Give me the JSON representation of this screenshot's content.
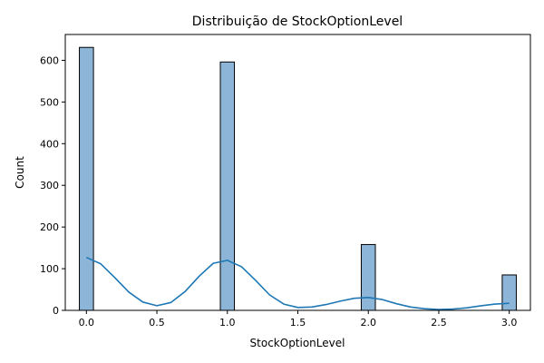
{
  "chart_data": {
    "type": "bar",
    "title": "Distribuição de StockOptionLevel",
    "xlabel": "StockOptionLevel",
    "ylabel": "Count",
    "xlim": [
      -0.15,
      3.15
    ],
    "ylim": [
      0,
      662
    ],
    "xticks": [
      0.0,
      0.5,
      1.0,
      1.5,
      2.0,
      2.5,
      3.0
    ],
    "xtick_labels": [
      "0.0",
      "0.5",
      "1.0",
      "1.5",
      "2.0",
      "2.5",
      "3.0"
    ],
    "yticks": [
      0,
      100,
      200,
      300,
      400,
      500,
      600
    ],
    "ytick_labels": [
      "0",
      "100",
      "200",
      "300",
      "400",
      "500",
      "600"
    ],
    "bar_width": 0.1,
    "bars": [
      {
        "x": 0.0,
        "value": 631
      },
      {
        "x": 1.0,
        "value": 596
      },
      {
        "x": 2.0,
        "value": 158
      },
      {
        "x": 3.0,
        "value": 85
      }
    ],
    "kde": {
      "x": [
        0.0,
        0.1,
        0.2,
        0.3,
        0.4,
        0.5,
        0.6,
        0.7,
        0.8,
        0.9,
        1.0,
        1.1,
        1.2,
        1.3,
        1.4,
        1.5,
        1.6,
        1.7,
        1.8,
        1.9,
        2.0,
        2.1,
        2.2,
        2.3,
        2.4,
        2.5,
        2.6,
        2.7,
        2.8,
        2.9,
        3.0
      ],
      "y": [
        127,
        112,
        79,
        44,
        20,
        11,
        19,
        45,
        82,
        113,
        120,
        105,
        72,
        37,
        15,
        7,
        8,
        14,
        22,
        29,
        31,
        26,
        16,
        8,
        4,
        2,
        3,
        6,
        11,
        15,
        17
      ]
    },
    "colors": {
      "bar_fill": "#8db5d8",
      "bar_edge": "#000000",
      "kde_line": "#1f77b4"
    },
    "grid": false,
    "legend": "none"
  }
}
